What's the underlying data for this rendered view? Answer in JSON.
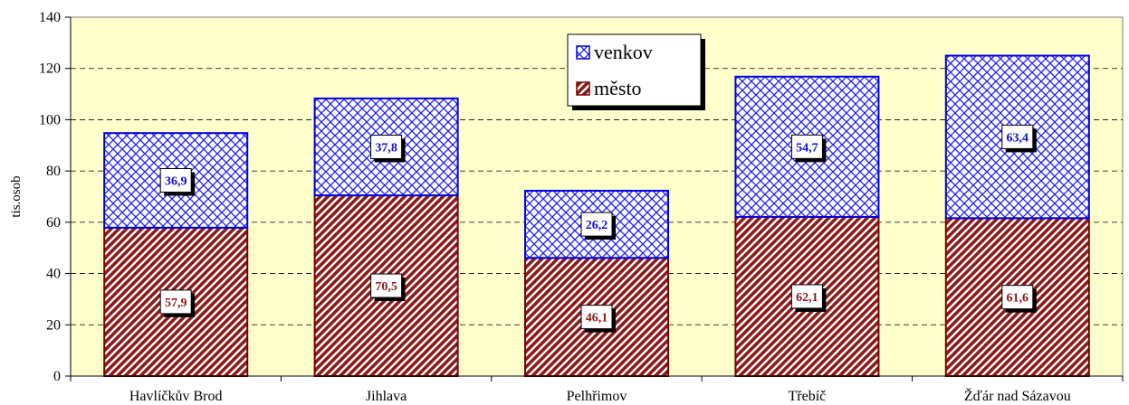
{
  "chart_data": {
    "type": "bar",
    "stacked": true,
    "categories": [
      "Havlíčkův Brod",
      "Jihlava",
      "Pelhřimov",
      "Třebíč",
      "Žďár nad Sázavou"
    ],
    "series": [
      {
        "name": "město",
        "values": [
          57.9,
          70.5,
          46.1,
          62.1,
          61.6
        ],
        "value_labels": [
          "57,9",
          "70,5",
          "46,1",
          "62,1",
          "61,6"
        ],
        "color": "#8b1a1a",
        "pattern": "diagonal-stripes"
      },
      {
        "name": "venkov",
        "values": [
          36.9,
          37.8,
          26.2,
          54.7,
          63.4
        ],
        "value_labels": [
          "36,9",
          "37,8",
          "26,2",
          "54,7",
          "63,4"
        ],
        "color": "#0000ee",
        "pattern": "crosshatch"
      }
    ],
    "xlabel": "",
    "ylabel": "tis.osob",
    "ylim": [
      0,
      140
    ],
    "yticks": [
      0,
      20,
      40,
      60,
      80,
      100,
      120,
      140
    ],
    "grid": "horizontal-dashed",
    "legend_position": "top-center",
    "legend_order": [
      "venkov",
      "město"
    ],
    "plot_background": "#ffffcc"
  }
}
